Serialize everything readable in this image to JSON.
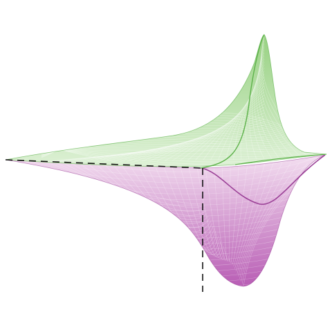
{
  "surfaces": {
    "upper": {
      "name": "green-surface",
      "fill_light": "#d9efd0",
      "fill_dark": "#8ccc74",
      "line": "#5db24a"
    },
    "lower": {
      "name": "purple-surface",
      "fill_light": "#f2dcef",
      "fill_dark": "#b24fae",
      "line": "#9a3f96"
    }
  },
  "axes": {
    "dash_color": "#111111"
  }
}
